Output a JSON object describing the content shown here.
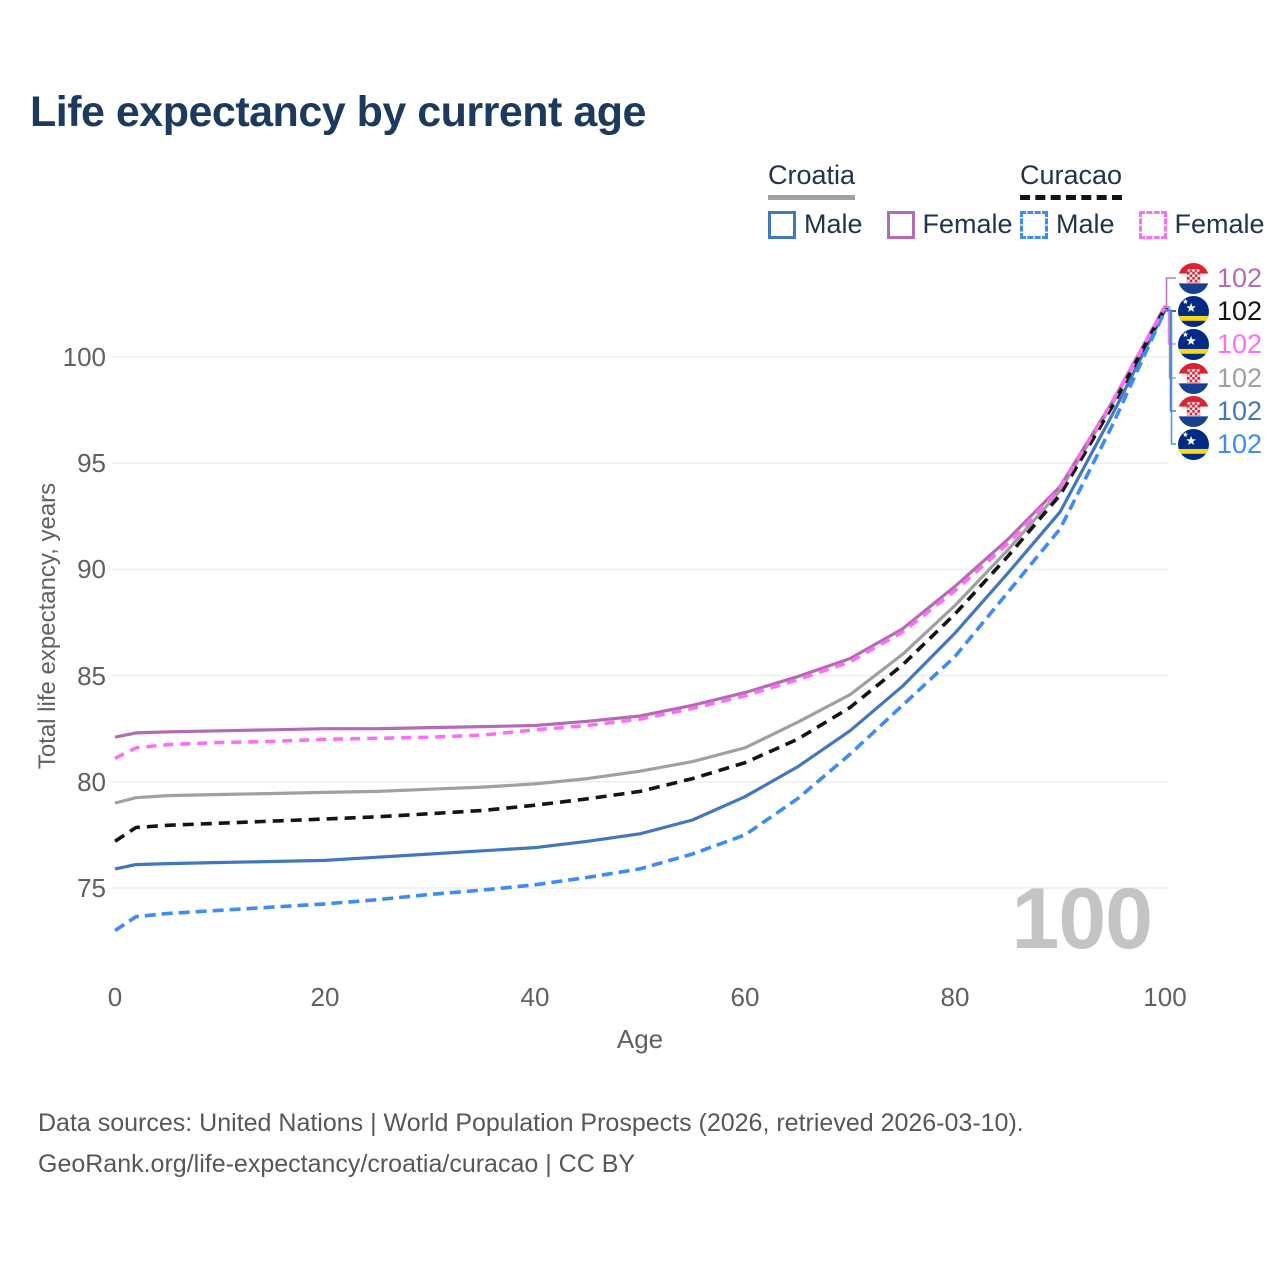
{
  "title": "Life expectancy by current age",
  "legend": {
    "groups": [
      {
        "label": "Croatia",
        "line_style": "solid",
        "line_color": "#a0a0a0",
        "items": [
          {
            "label": "Male",
            "color": "#4377bd",
            "style": "solid"
          },
          {
            "label": "Female",
            "color": "#b36cb4",
            "style": "solid"
          }
        ]
      },
      {
        "label": "Curacao",
        "line_style": "dashed",
        "line_color": "#141414",
        "items": [
          {
            "label": "Male",
            "color": "#3d8bf5",
            "style": "dashed"
          },
          {
            "label": "Female",
            "color": "#fd6ff1",
            "style": "dashed"
          }
        ]
      }
    ]
  },
  "chart_data": {
    "type": "line",
    "title": "Life expectancy by current age",
    "xlabel": "Age",
    "ylabel": "Total life expectancy, years",
    "xlim": [
      0,
      100
    ],
    "ylim": [
      72.5,
      103.5
    ],
    "xticks": [
      0,
      20,
      40,
      60,
      80,
      100
    ],
    "yticks": [
      75,
      80,
      85,
      90,
      95,
      100
    ],
    "grid": "horizontal",
    "grid_color": "#ebebeb",
    "watermark": "100",
    "watermark_color": "#c4c4c4",
    "title_color": "#1b3a5e",
    "x": [
      0,
      2,
      5,
      10,
      15,
      20,
      25,
      30,
      35,
      40,
      45,
      50,
      55,
      60,
      65,
      70,
      75,
      80,
      85,
      90,
      95,
      100
    ],
    "series": [
      {
        "id": "croatia-female",
        "country": "Croatia",
        "sex": "Female",
        "color": "#b36cb4",
        "style": "solid",
        "values": [
          82.1,
          82.3,
          82.35,
          82.4,
          82.45,
          82.5,
          82.5,
          82.55,
          82.6,
          82.65,
          82.85,
          83.1,
          83.6,
          84.2,
          84.95,
          85.8,
          87.2,
          89.2,
          91.4,
          93.9,
          97.9,
          102.4
        ]
      },
      {
        "id": "curacao-female",
        "country": "Curacao",
        "sex": "Female",
        "color": "#fd6ff1",
        "style": "dashed",
        "values": [
          81.1,
          81.6,
          81.75,
          81.85,
          81.9,
          82.0,
          82.05,
          82.1,
          82.2,
          82.45,
          82.65,
          82.95,
          83.45,
          84.05,
          84.8,
          85.65,
          87.05,
          89.0,
          91.2,
          93.8,
          97.9,
          102.35
        ]
      },
      {
        "id": "croatia-total",
        "country": "Croatia",
        "sex": "Both",
        "color": "#a0a0a0",
        "style": "solid",
        "values": [
          79.0,
          79.25,
          79.35,
          79.4,
          79.45,
          79.5,
          79.55,
          79.65,
          79.75,
          79.9,
          80.15,
          80.5,
          80.95,
          81.6,
          82.8,
          84.1,
          86.0,
          88.3,
          90.9,
          93.7,
          97.8,
          102.35
        ]
      },
      {
        "id": "curacao-total",
        "country": "Curacao",
        "sex": "Both",
        "color": "#141414",
        "style": "dashed",
        "values": [
          77.2,
          77.85,
          77.95,
          78.05,
          78.15,
          78.25,
          78.35,
          78.5,
          78.65,
          78.9,
          79.2,
          79.55,
          80.15,
          80.9,
          82.0,
          83.5,
          85.5,
          87.9,
          90.6,
          93.5,
          97.7,
          102.3
        ]
      },
      {
        "id": "croatia-male",
        "country": "Croatia",
        "sex": "Male",
        "color": "#4377bd",
        "style": "solid",
        "values": [
          75.9,
          76.1,
          76.15,
          76.2,
          76.25,
          76.3,
          76.45,
          76.6,
          76.75,
          76.9,
          77.2,
          77.55,
          78.2,
          79.3,
          80.7,
          82.4,
          84.5,
          87.0,
          89.8,
          92.7,
          97.3,
          102.2
        ]
      },
      {
        "id": "curacao-male",
        "country": "Curacao",
        "sex": "Male",
        "color": "#3d8bf5",
        "style": "dashed",
        "values": [
          73.0,
          73.65,
          73.8,
          73.95,
          74.1,
          74.25,
          74.45,
          74.7,
          74.9,
          75.15,
          75.5,
          75.9,
          76.6,
          77.5,
          79.2,
          81.3,
          83.6,
          85.9,
          88.9,
          91.9,
          96.8,
          102.2
        ]
      }
    ],
    "end_labels": [
      {
        "flag": "croatia",
        "series": "croatia-female",
        "value": "102",
        "color": "#b36cb4"
      },
      {
        "flag": "curacao",
        "series": "curacao-total",
        "value": "102",
        "color": "#141414"
      },
      {
        "flag": "curacao",
        "series": "curacao-female",
        "value": "102",
        "color": "#fd6ff1"
      },
      {
        "flag": "croatia",
        "series": "croatia-total",
        "value": "102",
        "color": "#a0a0a0"
      },
      {
        "flag": "croatia",
        "series": "croatia-male",
        "value": "102",
        "color": "#4377bd"
      },
      {
        "flag": "curacao",
        "series": "curacao-male",
        "value": "102",
        "color": "#3d8bf5"
      }
    ]
  },
  "source": {
    "line1": "Data sources: United Nations | World Population Prospects (2026, retrieved 2026-03-10).",
    "line2": "GeoRank.org/life-expectancy/croatia/curacao | CC BY"
  }
}
